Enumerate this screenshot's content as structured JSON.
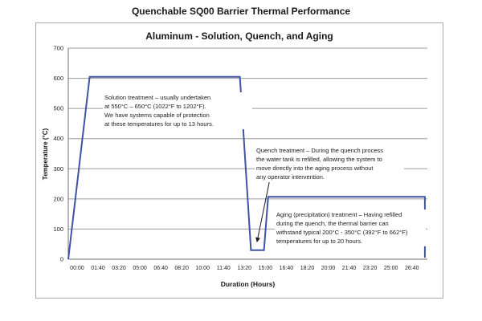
{
  "header": {
    "title": "Quenchable SQ00 Barrier Thermal Performance"
  },
  "chart_data": {
    "type": "line",
    "title": "Aluminum - Solution, Quench, and Aging",
    "xlabel": "Duration (Hours)",
    "ylabel": "Temperature (°C)",
    "ylim": [
      0,
      700
    ],
    "y_ticks": [
      0,
      100,
      200,
      300,
      400,
      500,
      600,
      700
    ],
    "x_tick_labels": [
      "00:00",
      "01:40",
      "03:20",
      "05:00",
      "06:40",
      "08:20",
      "10:00",
      "11:40",
      "13:20",
      "15:00",
      "16:40",
      "18:20",
      "20:00",
      "21:40",
      "23:20",
      "25:00",
      "26:40"
    ],
    "x_tick_interval_minutes": 100,
    "xlim_minutes": [
      -42,
      1674
    ],
    "grid": "horizontal",
    "legend": "none",
    "colors": {
      "line": "#3f53a4",
      "gridline": "#9a9a9a",
      "axis": "#6e6e6e",
      "text": "#1a1a1a"
    },
    "series": [
      {
        "name": "temperature-profile",
        "color": "#3f53a4",
        "points_minutes_degC": [
          [
            -42,
            0
          ],
          [
            60,
            605
          ],
          [
            778,
            605
          ],
          [
            831,
            30
          ],
          [
            893,
            30
          ],
          [
            913,
            207
          ],
          [
            1662,
            207
          ],
          [
            1662,
            5
          ]
        ]
      }
    ],
    "annotations": {
      "solution": {
        "lines": [
          "Solution treatment – usually undertaken",
          "at 550°C – 650°C (1022°F to 1202°F).",
          "We have systems capable of protection",
          "at these temperatures for up to 13 hours."
        ]
      },
      "quench": {
        "lines": [
          "Quench treatment – During the quench process",
          "the water tank is refilled, allowing the system to",
          "move directly into the aging process without",
          "any operator intervention."
        ]
      },
      "aging": {
        "lines": [
          "Aging (precipitation) treatment – Having refilled",
          "during the quench, the thermal barrier can",
          "withstand typical 200°C - 350°C (392°F to 662°F)",
          "temperatures for up to 20 hours."
        ]
      }
    }
  }
}
